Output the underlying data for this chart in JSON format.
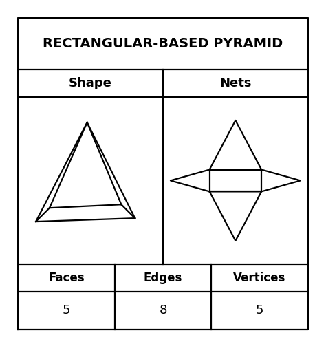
{
  "title": "RECTANGULAR-BASED PYRAMID",
  "col1_header": "Shape",
  "col2_header": "Nets",
  "row_labels": [
    "Faces",
    "Edges",
    "Vertices"
  ],
  "row_values": [
    "5",
    "8",
    "5"
  ],
  "bg_color": "#ffffff",
  "border_color": "#000000",
  "text_color": "#000000",
  "title_fontsize": 14,
  "header_fontsize": 13,
  "label_fontsize": 12,
  "value_fontsize": 13,
  "lw": 1.6
}
